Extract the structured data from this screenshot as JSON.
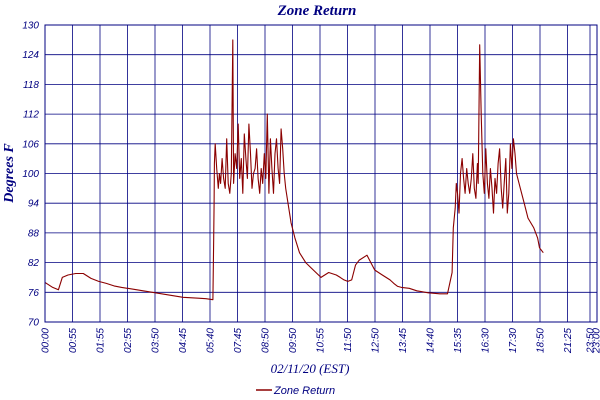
{
  "chart_data": {
    "type": "line",
    "title": "Zone Return",
    "xlabel": "02/11/20 (EST)",
    "ylabel": "Degrees F",
    "ylim": [
      70,
      130
    ],
    "yticks": [
      70,
      76,
      82,
      88,
      94,
      100,
      106,
      112,
      118,
      124,
      130
    ],
    "xlim_minutes": [
      0,
      1440
    ],
    "x_tick_labels": [
      "00:00",
      "00:55",
      "01:55",
      "02:55",
      "03:50",
      "04:45",
      "05:40",
      "07:45",
      "08:50",
      "09:50",
      "10:55",
      "11:50",
      "12:50",
      "13:45",
      "14:40",
      "15:35",
      "16:30",
      "17:30",
      "18:50",
      "21:25",
      "23:50",
      "23:00"
    ],
    "grid": true,
    "legend_position": "bottom-center",
    "color": "#8b0000",
    "series": [
      {
        "name": "Zone Return",
        "x_minutes": [
          0,
          20,
          35,
          45,
          60,
          80,
          100,
          120,
          140,
          160,
          180,
          200,
          240,
          280,
          320,
          360,
          400,
          420,
          438,
          440,
          441,
          442,
          444,
          448,
          452,
          455,
          458,
          462,
          466,
          470,
          474,
          478,
          482,
          486,
          490,
          492,
          496,
          500,
          504,
          508,
          512,
          516,
          520,
          524,
          528,
          532,
          536,
          540,
          544,
          548,
          552,
          556,
          560,
          564,
          568,
          572,
          576,
          580,
          584,
          588,
          592,
          596,
          600,
          604,
          608,
          612,
          616,
          620,
          624,
          628,
          634,
          642,
          652,
          664,
          680,
          700,
          720,
          740,
          760,
          770,
          780,
          790,
          800,
          810,
          820,
          840,
          860,
          880,
          900,
          910,
          920,
          930,
          950,
          970,
          1000,
          1030,
          1050,
          1062,
          1065,
          1070,
          1073,
          1076,
          1080,
          1084,
          1088,
          1092,
          1096,
          1100,
          1104,
          1108,
          1112,
          1116,
          1120,
          1124,
          1128,
          1130,
          1134,
          1138,
          1142,
          1146,
          1150,
          1154,
          1158,
          1162,
          1166,
          1170,
          1174,
          1178,
          1182,
          1186,
          1190,
          1194,
          1198,
          1202,
          1206,
          1210,
          1214,
          1218,
          1222,
          1226,
          1230,
          1240,
          1250,
          1260,
          1275,
          1285,
          1290,
          1300
        ],
        "y": [
          78,
          77,
          76.5,
          79,
          79.5,
          79.8,
          79.8,
          78.8,
          78.2,
          77.8,
          77.3,
          77,
          76.5,
          76,
          75.5,
          75,
          74.8,
          74.7,
          74.5,
          87,
          94,
          102,
          106,
          101,
          97,
          100,
          98,
          103,
          99,
          97,
          107,
          98,
          96,
          100,
          127,
          98,
          104,
          101,
          110,
          99,
          103,
          96,
          108,
          103,
          99,
          110,
          104,
          97,
          100,
          101,
          105,
          99,
          96,
          101,
          98,
          104,
          99,
          112,
          96,
          107,
          101,
          96,
          104,
          107,
          101,
          98,
          109,
          105,
          100,
          97,
          94,
          90,
          87,
          84,
          82,
          80.5,
          79,
          80,
          79.5,
          79,
          78.5,
          78.2,
          78.5,
          81.5,
          82.5,
          83.5,
          80.5,
          79.5,
          78.5,
          77.8,
          77.2,
          77,
          76.8,
          76.3,
          75.9,
          75.7,
          75.7,
          80,
          89,
          93,
          98,
          96,
          92,
          100,
          103,
          99,
          96,
          101,
          98,
          96,
          99,
          104,
          97,
          95,
          102,
          98,
          126,
          112,
          100,
          96,
          105,
          98,
          95,
          101,
          97,
          92,
          99,
          96,
          102,
          105,
          97,
          93,
          98,
          103,
          92,
          96,
          106,
          101,
          107,
          104,
          100,
          97,
          94,
          91,
          89,
          87,
          85,
          84
        ]
      }
    ]
  },
  "legend": {
    "label": "Zone Return"
  }
}
